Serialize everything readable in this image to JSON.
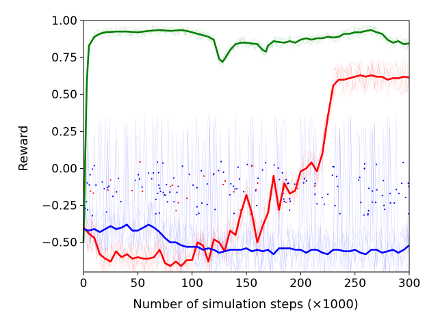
{
  "chart_data": {
    "type": "line",
    "title": "",
    "xlabel": "Number of simulation steps (×1000)",
    "ylabel": "Reward",
    "xlim": [
      0,
      300
    ],
    "ylim": [
      -0.7,
      1.0
    ],
    "xticks": [
      0,
      50,
      100,
      150,
      200,
      250,
      300
    ],
    "xtick_labels": [
      "0",
      "50",
      "100",
      "150",
      "200",
      "250",
      "300"
    ],
    "yticks": [
      1.0,
      0.75,
      0.5,
      0.25,
      0.0,
      -0.25,
      -0.5
    ],
    "ytick_labels": [
      "1.00",
      "0.75",
      "0.50",
      "0.25",
      "0.00",
      "−0.25",
      "−0.50"
    ],
    "grid": false,
    "legend": "none",
    "series": [
      {
        "color": "#008000",
        "x": [
          0,
          3,
          5,
          10,
          15,
          20,
          30,
          40,
          50,
          60,
          70,
          80,
          90,
          95,
          100,
          105,
          110,
          115,
          120,
          125,
          128,
          130,
          135,
          140,
          145,
          150,
          155,
          160,
          165,
          168,
          170,
          175,
          180,
          185,
          190,
          195,
          200,
          205,
          210,
          215,
          220,
          225,
          230,
          235,
          240,
          245,
          250,
          255,
          260,
          265,
          270,
          275,
          280,
          285,
          290,
          295,
          300
        ],
        "y": [
          -0.5,
          0.58,
          0.83,
          0.89,
          0.91,
          0.92,
          0.925,
          0.925,
          0.92,
          0.93,
          0.935,
          0.93,
          0.935,
          0.93,
          0.92,
          0.91,
          0.9,
          0.89,
          0.87,
          0.74,
          0.72,
          0.74,
          0.8,
          0.84,
          0.85,
          0.85,
          0.845,
          0.84,
          0.8,
          0.79,
          0.83,
          0.86,
          0.855,
          0.85,
          0.86,
          0.85,
          0.87,
          0.88,
          0.87,
          0.88,
          0.88,
          0.89,
          0.885,
          0.89,
          0.91,
          0.91,
          0.92,
          0.92,
          0.93,
          0.935,
          0.92,
          0.91,
          0.87,
          0.85,
          0.86,
          0.84,
          0.845
        ]
      },
      {
        "color": "#ff0000",
        "x": [
          0,
          5,
          10,
          15,
          20,
          25,
          30,
          35,
          40,
          45,
          50,
          55,
          60,
          65,
          70,
          72,
          75,
          80,
          85,
          90,
          95,
          100,
          105,
          110,
          115,
          120,
          125,
          130,
          135,
          140,
          145,
          150,
          155,
          160,
          165,
          170,
          175,
          180,
          185,
          190,
          195,
          200,
          205,
          210,
          215,
          220,
          225,
          230,
          235,
          240,
          245,
          250,
          255,
          260,
          265,
          270,
          275,
          280,
          285,
          290,
          295,
          300
        ],
        "y": [
          -0.4,
          -0.44,
          -0.47,
          -0.58,
          -0.61,
          -0.63,
          -0.56,
          -0.6,
          -0.58,
          -0.61,
          -0.6,
          -0.61,
          -0.61,
          -0.6,
          -0.55,
          -0.58,
          -0.64,
          -0.66,
          -0.63,
          -0.66,
          -0.62,
          -0.62,
          -0.5,
          -0.52,
          -0.63,
          -0.48,
          -0.5,
          -0.56,
          -0.42,
          -0.45,
          -0.3,
          -0.18,
          -0.3,
          -0.5,
          -0.39,
          -0.3,
          -0.05,
          -0.28,
          -0.1,
          -0.17,
          -0.15,
          -0.02,
          0.0,
          0.04,
          -0.02,
          0.1,
          0.35,
          0.56,
          0.6,
          0.6,
          0.61,
          0.62,
          0.63,
          0.62,
          0.63,
          0.62,
          0.62,
          0.6,
          0.61,
          0.61,
          0.62,
          0.615
        ]
      },
      {
        "color": "#0000ff",
        "x": [
          0,
          5,
          10,
          15,
          20,
          25,
          30,
          35,
          40,
          45,
          50,
          55,
          60,
          65,
          70,
          75,
          80,
          85,
          90,
          95,
          100,
          105,
          110,
          115,
          120,
          125,
          130,
          135,
          140,
          145,
          150,
          155,
          160,
          165,
          170,
          175,
          180,
          185,
          190,
          195,
          200,
          205,
          210,
          215,
          220,
          225,
          230,
          235,
          240,
          245,
          250,
          255,
          260,
          265,
          270,
          275,
          280,
          285,
          290,
          295,
          300
        ],
        "y": [
          -0.41,
          -0.42,
          -0.41,
          -0.43,
          -0.41,
          -0.39,
          -0.41,
          -0.4,
          -0.38,
          -0.42,
          -0.42,
          -0.4,
          -0.38,
          -0.4,
          -0.43,
          -0.47,
          -0.5,
          -0.5,
          -0.52,
          -0.53,
          -0.53,
          -0.53,
          -0.55,
          -0.54,
          -0.55,
          -0.57,
          -0.56,
          -0.55,
          -0.55,
          -0.55,
          -0.54,
          -0.56,
          -0.55,
          -0.56,
          -0.55,
          -0.58,
          -0.54,
          -0.54,
          -0.54,
          -0.55,
          -0.55,
          -0.57,
          -0.55,
          -0.55,
          -0.57,
          -0.58,
          -0.55,
          -0.55,
          -0.56,
          -0.56,
          -0.55,
          -0.57,
          -0.58,
          -0.55,
          -0.55,
          -0.57,
          -0.56,
          -0.55,
          -0.57,
          -0.55,
          -0.52
        ]
      }
    ]
  }
}
